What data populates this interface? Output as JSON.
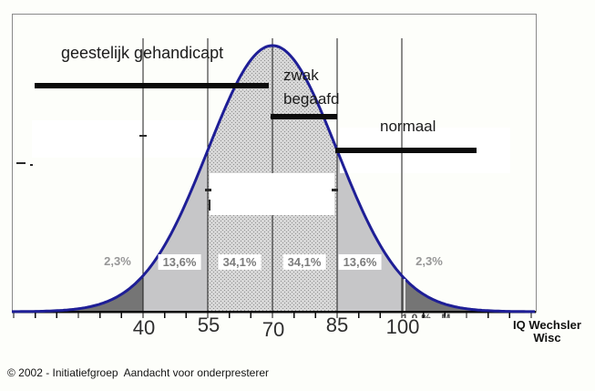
{
  "page": {
    "footer": "© 2002 - Initiatiefgroep  Aandacht voor onderpresterer"
  },
  "bands": {
    "band1": {
      "label": "geestelijk gehandicapt"
    },
    "band2": {
      "label_line1": "zwak",
      "label_line2": "begaafd"
    },
    "band3": {
      "label": "normaal"
    }
  },
  "axis": {
    "tick_labels": [
      "40",
      "55",
      "70",
      "85",
      "100"
    ],
    "title_line1": "IQ Wechsler",
    "title_line2": "Wisc"
  },
  "percent_labels": [
    {
      "text": "2,3%",
      "boxed": false
    },
    {
      "text": "13,6%",
      "boxed": true
    },
    {
      "text": "34,1%",
      "boxed": true
    },
    {
      "text": "34,1%",
      "boxed": true
    },
    {
      "text": "13,6%",
      "boxed": true
    },
    {
      "text": "2,3%",
      "boxed": false
    }
  ],
  "remnants": {
    "partial_text": "10% M"
  },
  "colors": {
    "curve": "#1e1e96",
    "fill_light": "#c6c6c8",
    "fill_stipple_bg": "#d7d7d7",
    "fill_stipple_dot": "#8f8f8f",
    "fill_dark": "#757575",
    "grid_line": "#1a1a1a",
    "axis_line": "#0a0a0a",
    "plot_border": "#8a8a8a",
    "bar_black": "#0b0b0b",
    "pct_text": "#7c7c7c"
  },
  "chart_data": {
    "type": "area",
    "subtype": "normal-distribution-curve",
    "title": "",
    "xlabel": "IQ Wechsler Wisc",
    "x_ticks": [
      40,
      55,
      70,
      85,
      100
    ],
    "mean": 70,
    "sd": 15,
    "grid": "vertical gridlines at labeled ticks",
    "legend": false,
    "segments": [
      {
        "x_from": null,
        "x_to": 40,
        "percent": 2.3,
        "label": "2,3%",
        "shade": "dark"
      },
      {
        "x_from": 40,
        "x_to": 55,
        "percent": 13.6,
        "label": "13,6%",
        "shade": "light"
      },
      {
        "x_from": 55,
        "x_to": 70,
        "percent": 34.1,
        "label": "34,1%",
        "shade": "stipple"
      },
      {
        "x_from": 70,
        "x_to": 85,
        "percent": 34.1,
        "label": "34,1%",
        "shade": "stipple"
      },
      {
        "x_from": 85,
        "x_to": 100,
        "percent": 13.6,
        "label": "13,6%",
        "shade": "light"
      },
      {
        "x_from": 100,
        "x_to": null,
        "percent": 2.3,
        "label": "2,3%",
        "shade": "dark"
      }
    ],
    "category_bars": [
      {
        "label": "geestelijk gehandicapt",
        "iq_from": 15,
        "iq_to": 69
      },
      {
        "label": "zwak begaafd",
        "iq_from": 70,
        "iq_to": 85
      },
      {
        "label": "normaal",
        "iq_from": 85,
        "iq_to": 117
      }
    ]
  }
}
